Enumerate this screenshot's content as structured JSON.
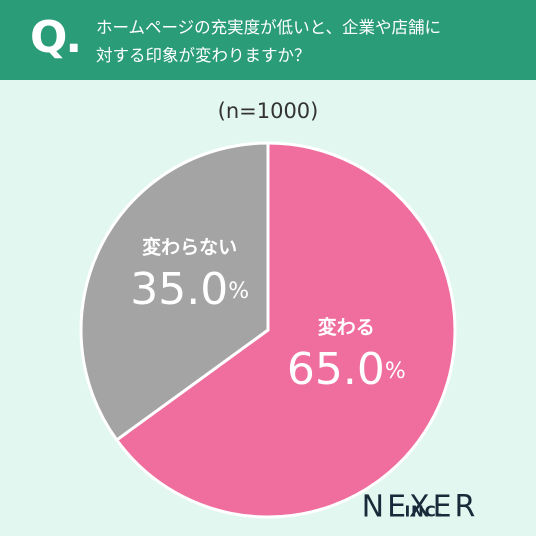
{
  "chart_data": {
    "type": "pie",
    "question_label": "Q.",
    "title": [
      "ホームページの充実度が低いと、企業や店舗に",
      "対する印象が変わりますか？"
    ],
    "subtitle": "(n=1000)",
    "categories": [
      "変わる",
      "変わらない"
    ],
    "values": [
      65.0,
      35.0
    ],
    "value_labels": [
      "65.0%",
      "35.0%"
    ],
    "colors": [
      "#ef6e9d",
      "#a4a4a4"
    ],
    "brand": "NEXER",
    "brand_suffix": "INC."
  }
}
